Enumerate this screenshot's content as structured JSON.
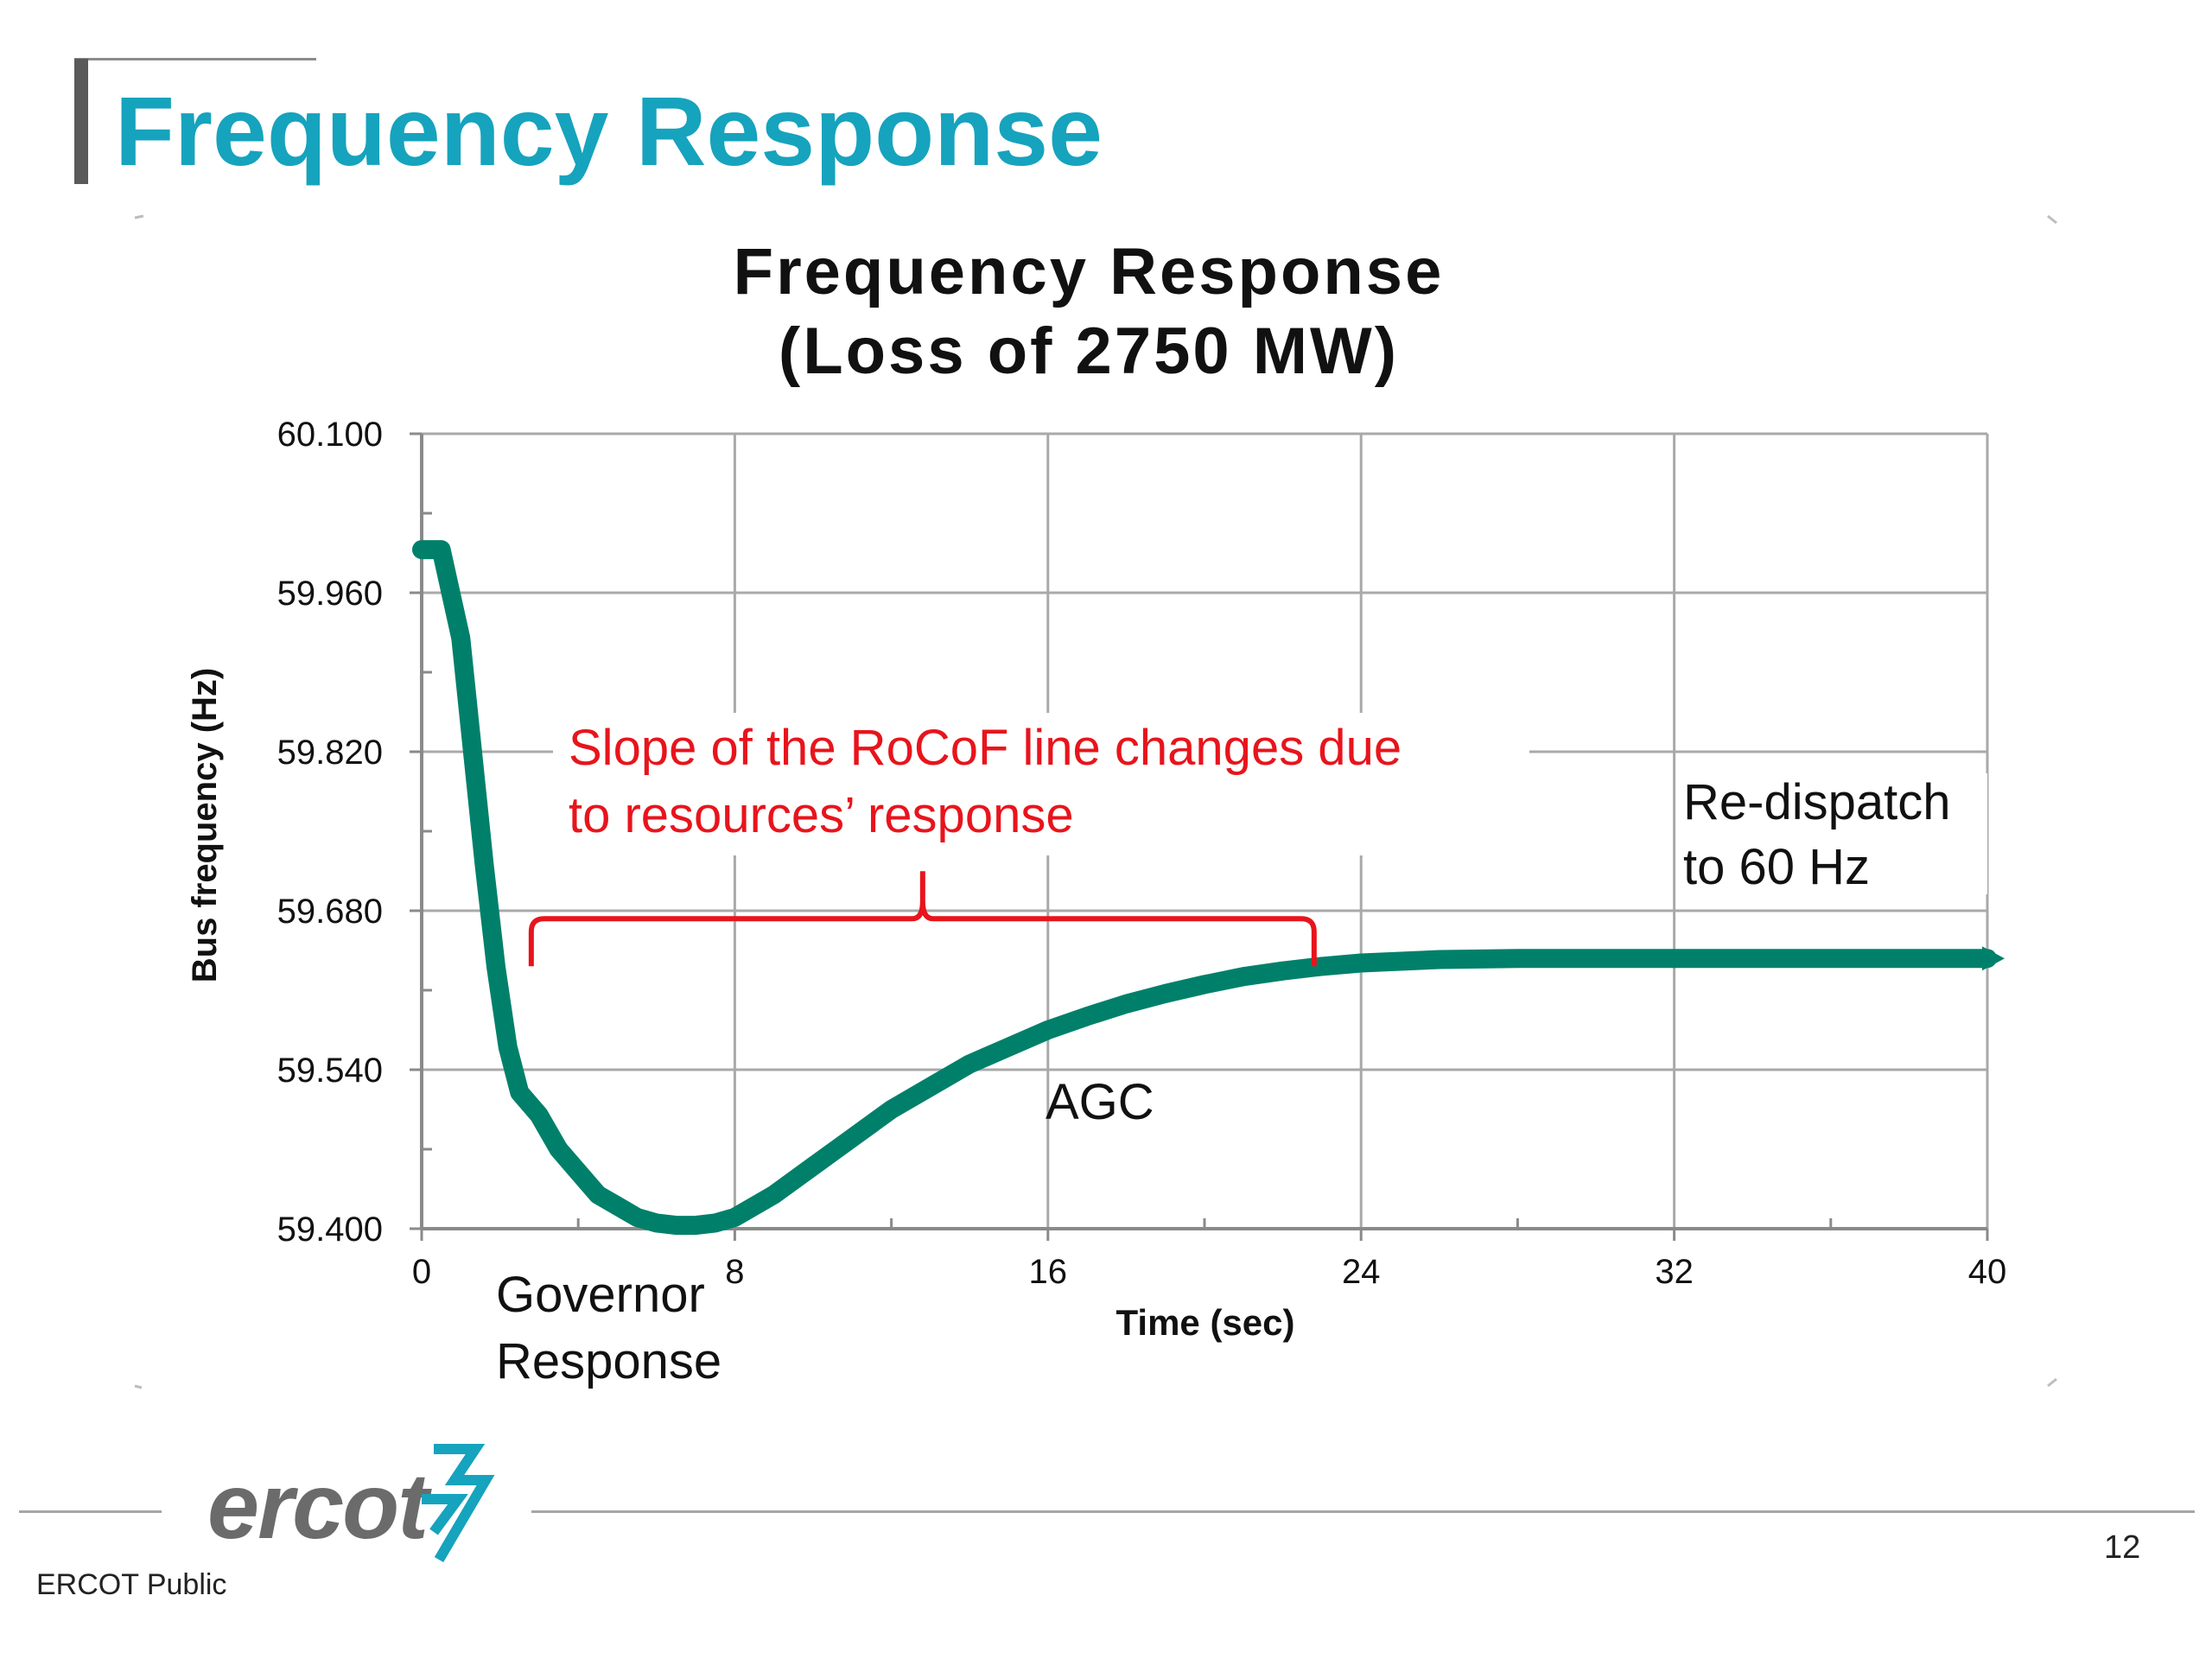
{
  "slide": {
    "title": "Frequency Response",
    "footer_label": "ERCOT Public",
    "page_number": "12",
    "logo_text": "ercot",
    "accent_color": "#16a3bd"
  },
  "chart_data": {
    "type": "line",
    "title_line1": "Frequency Response",
    "title_line2": "(Loss of 2750 MW)",
    "xlabel": "Time (sec)",
    "ylabel": "Bus frequency (Hz)",
    "xlim": [
      0,
      40
    ],
    "ylim": [
      59.4,
      60.1
    ],
    "xticks": [
      0,
      8,
      16,
      24,
      32,
      40
    ],
    "xtick_labels": [
      "0",
      "8",
      "16",
      "24",
      "32",
      "40"
    ],
    "yticks": [
      59.4,
      59.54,
      59.68,
      59.82,
      59.96,
      60.1
    ],
    "ytick_labels": [
      "59.400",
      "59.540",
      "59.680",
      "59.820",
      "59.960",
      "60.100"
    ],
    "grid": true,
    "line_color": "#00806a",
    "series": [
      {
        "x": [
          0,
          0.5,
          1.0,
          1.3,
          1.6,
          1.9,
          2.2,
          2.5,
          3.0,
          3.5,
          4.0,
          4.5,
          5.0,
          5.5,
          6.0,
          6.5,
          7.0,
          7.5,
          8.0,
          9.0,
          10.0,
          11.0,
          12.0,
          13.0,
          14.0,
          15.0,
          16.0,
          17.0,
          18.0,
          19.0,
          20.0,
          21.0,
          22.0,
          23.0,
          24.0,
          26.0,
          28.0,
          30.0,
          32.0,
          34.0,
          36.0,
          38.0,
          40.0
        ],
        "y": [
          59.998,
          59.998,
          59.92,
          59.82,
          59.72,
          59.63,
          59.56,
          59.52,
          59.5,
          59.47,
          59.45,
          59.43,
          59.42,
          59.41,
          59.405,
          59.403,
          59.403,
          59.405,
          59.41,
          59.43,
          59.455,
          59.48,
          59.505,
          59.525,
          59.545,
          59.56,
          59.575,
          59.587,
          59.598,
          59.607,
          59.615,
          59.622,
          59.627,
          59.631,
          59.634,
          59.637,
          59.638,
          59.638,
          59.638,
          59.638,
          59.638,
          59.638,
          59.638
        ]
      }
    ],
    "annotations": {
      "rocof_line1": "Slope of the RoCoF line changes due",
      "rocof_line2": "to resources’ response",
      "agc": "AGC",
      "redispatch_line1": "Re-dispatch",
      "redispatch_line2": "to 60 Hz",
      "governor_line1": "Governor",
      "governor_line2": "Response",
      "annotation_color": "#e8141c",
      "brace_x_range": [
        2.8,
        22.8
      ],
      "brace_y": 59.673
    }
  }
}
